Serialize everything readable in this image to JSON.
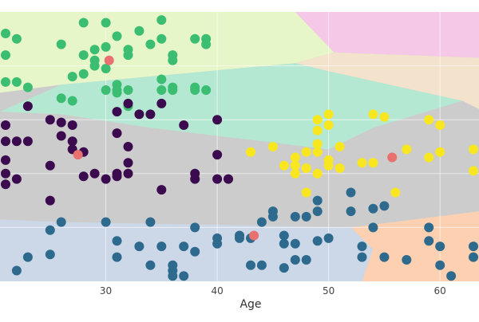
{
  "chart_data": {
    "type": "scatter",
    "title": "",
    "xlabel": "Age",
    "ylabel": "",
    "xlim": [
      20.5,
      63.5
    ],
    "ylim": [
      0,
      100
    ],
    "grid": true,
    "xticks": [
      30,
      40,
      50,
      60
    ],
    "regions": [
      {
        "name": "region-green",
        "color": "#e6f6c8",
        "polygon": [
          [
            20.5,
            100
          ],
          [
            47,
            100
          ],
          [
            50.5,
            85
          ],
          [
            47,
            81
          ],
          [
            26,
            73
          ],
          [
            20.5,
            70
          ]
        ]
      },
      {
        "name": "region-pink",
        "color": "#f4c8e6",
        "polygon": [
          [
            47,
            100
          ],
          [
            63.5,
            100
          ],
          [
            63.5,
            83
          ],
          [
            50.5,
            85
          ]
        ]
      },
      {
        "name": "region-tan",
        "color": "#f3e2cc",
        "polygon": [
          [
            50.5,
            85
          ],
          [
            63.5,
            83
          ],
          [
            63.5,
            64
          ],
          [
            62,
            67
          ],
          [
            50,
            78
          ],
          [
            47,
            81
          ]
        ]
      },
      {
        "name": "region-teal",
        "color": "#b5e8d2",
        "polygon": [
          [
            26,
            73
          ],
          [
            47,
            81
          ],
          [
            50,
            78
          ],
          [
            62,
            67
          ],
          [
            54,
            57
          ],
          [
            50,
            49
          ],
          [
            38,
            55
          ],
          [
            34,
            57
          ],
          [
            26,
            62
          ],
          [
            20.5,
            63
          ]
        ]
      },
      {
        "name": "region-blue",
        "color": "#ccd8e8",
        "polygon": [
          [
            20.5,
            23
          ],
          [
            26,
            22
          ],
          [
            52,
            20
          ],
          [
            54,
            12
          ],
          [
            53,
            0
          ],
          [
            20.5,
            0
          ]
        ]
      },
      {
        "name": "region-orange",
        "color": "#fcd0b0",
        "polygon": [
          [
            52,
            20
          ],
          [
            63.5,
            26
          ],
          [
            63.5,
            0
          ],
          [
            53,
            0
          ],
          [
            54,
            12
          ]
        ]
      }
    ],
    "series": [
      {
        "color": "#3bbd72",
        "points": [
          [
            21,
            92
          ],
          [
            21,
            84
          ],
          [
            22,
            90
          ],
          [
            21,
            74
          ],
          [
            22,
            74
          ],
          [
            23,
            72
          ],
          [
            26,
            88
          ],
          [
            26,
            68
          ],
          [
            27,
            76
          ],
          [
            27,
            67
          ],
          [
            28,
            96
          ],
          [
            28,
            84
          ],
          [
            28,
            77
          ],
          [
            29,
            80
          ],
          [
            29,
            86
          ],
          [
            29,
            82
          ],
          [
            30,
            96
          ],
          [
            30,
            87
          ],
          [
            30,
            79
          ],
          [
            30,
            71
          ],
          [
            31,
            91
          ],
          [
            31,
            73
          ],
          [
            31,
            71
          ],
          [
            31,
            70
          ],
          [
            32,
            86
          ],
          [
            32,
            84
          ],
          [
            32,
            71
          ],
          [
            32,
            65
          ],
          [
            33,
            93
          ],
          [
            34,
            88
          ],
          [
            35,
            97
          ],
          [
            35,
            90
          ],
          [
            35,
            75
          ],
          [
            35,
            71
          ],
          [
            36,
            84
          ],
          [
            36,
            82
          ],
          [
            36,
            72
          ],
          [
            36,
            71
          ],
          [
            38,
            90
          ],
          [
            38,
            72
          ],
          [
            38,
            71
          ],
          [
            39,
            90
          ],
          [
            39,
            88
          ],
          [
            39,
            71
          ]
        ]
      },
      {
        "color": "#3c0a4e",
        "points": [
          [
            21,
            58
          ],
          [
            21,
            52
          ],
          [
            21,
            45
          ],
          [
            21,
            36
          ],
          [
            21,
            40
          ],
          [
            22,
            52
          ],
          [
            22,
            38
          ],
          [
            23,
            65
          ],
          [
            23,
            52
          ],
          [
            25,
            60
          ],
          [
            25,
            43
          ],
          [
            25,
            30
          ],
          [
            26,
            59
          ],
          [
            26,
            54
          ],
          [
            27,
            52
          ],
          [
            27,
            49
          ],
          [
            27,
            58
          ],
          [
            28,
            48
          ],
          [
            28,
            39
          ],
          [
            29,
            40
          ],
          [
            30,
            38
          ],
          [
            31,
            63
          ],
          [
            31,
            55
          ],
          [
            31,
            40
          ],
          [
            31,
            39
          ],
          [
            32,
            66
          ],
          [
            32,
            50
          ],
          [
            32,
            44
          ],
          [
            32,
            40
          ],
          [
            33,
            62
          ],
          [
            34,
            62
          ],
          [
            35,
            66
          ],
          [
            35,
            34
          ],
          [
            37,
            58
          ],
          [
            38,
            40
          ],
          [
            38,
            38
          ],
          [
            40,
            60
          ],
          [
            40,
            47
          ],
          [
            40,
            38
          ],
          [
            41,
            38
          ]
        ]
      },
      {
        "color": "#f8e620",
        "points": [
          [
            43,
            48
          ],
          [
            45,
            50
          ],
          [
            46,
            43
          ],
          [
            47,
            43
          ],
          [
            47,
            40
          ],
          [
            47,
            46
          ],
          [
            48,
            48
          ],
          [
            48,
            42
          ],
          [
            48,
            33
          ],
          [
            49,
            60
          ],
          [
            49,
            56
          ],
          [
            49,
            51
          ],
          [
            49,
            48
          ],
          [
            49,
            40
          ],
          [
            50,
            58
          ],
          [
            50,
            45
          ],
          [
            50,
            43
          ],
          [
            50,
            62
          ],
          [
            51,
            50
          ],
          [
            51,
            42
          ],
          [
            53,
            44
          ],
          [
            54,
            62
          ],
          [
            54,
            44
          ],
          [
            55,
            61
          ],
          [
            56,
            33
          ],
          [
            57,
            49
          ],
          [
            59,
            46
          ],
          [
            59,
            60
          ],
          [
            60,
            58
          ],
          [
            60,
            48
          ],
          [
            63,
            49
          ],
          [
            63,
            41
          ]
        ]
      },
      {
        "color": "#2e6a8e",
        "points": [
          [
            22,
            4
          ],
          [
            23,
            9
          ],
          [
            25,
            10
          ],
          [
            25,
            19
          ],
          [
            26,
            22
          ],
          [
            30,
            22
          ],
          [
            31,
            15
          ],
          [
            31,
            9
          ],
          [
            33,
            13
          ],
          [
            34,
            6
          ],
          [
            34,
            22
          ],
          [
            35,
            13
          ],
          [
            36,
            4
          ],
          [
            36,
            2
          ],
          [
            36,
            6
          ],
          [
            37,
            13
          ],
          [
            37,
            2
          ],
          [
            38,
            11
          ],
          [
            38,
            20
          ],
          [
            40,
            14
          ],
          [
            40,
            16
          ],
          [
            42,
            17
          ],
          [
            42,
            16
          ],
          [
            43,
            16
          ],
          [
            43,
            6
          ],
          [
            44,
            6
          ],
          [
            44,
            22
          ],
          [
            45,
            24
          ],
          [
            45,
            26
          ],
          [
            46,
            5
          ],
          [
            46,
            17
          ],
          [
            46,
            14
          ],
          [
            47,
            24
          ],
          [
            47,
            8
          ],
          [
            47,
            14
          ],
          [
            48,
            8
          ],
          [
            48,
            24
          ],
          [
            49,
            15
          ],
          [
            49,
            26
          ],
          [
            49,
            30
          ],
          [
            50,
            16
          ],
          [
            52,
            26
          ],
          [
            52,
            33
          ],
          [
            53,
            9
          ],
          [
            53,
            13
          ],
          [
            54,
            20
          ],
          [
            54,
            27
          ],
          [
            55,
            9
          ],
          [
            55,
            28
          ],
          [
            57,
            8
          ],
          [
            59,
            15
          ],
          [
            59,
            20
          ],
          [
            60,
            13
          ],
          [
            60,
            6
          ],
          [
            61,
            2
          ],
          [
            63,
            9
          ],
          [
            63,
            13
          ]
        ]
      },
      {
        "color": "#e8706e",
        "points": [
          [
            30.3,
            82
          ],
          [
            27.5,
            47
          ],
          [
            43.3,
            17
          ],
          [
            55.7,
            46
          ]
        ]
      }
    ]
  }
}
